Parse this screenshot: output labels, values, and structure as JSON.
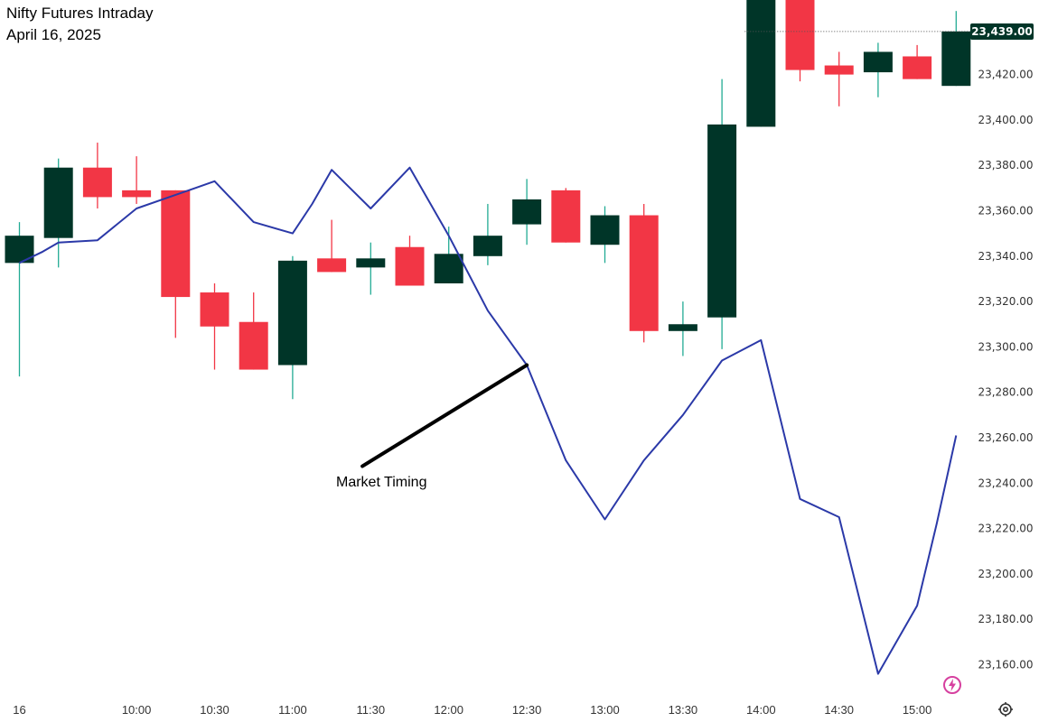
{
  "chart_data": {
    "type": "candlestick",
    "title": "Nifty Futures Intraday",
    "subtitle": "April 16, 2025",
    "annotation": "Market Timing",
    "last_price_label": "23,439.00",
    "last_price": 23439,
    "ylim": [
      23144,
      23462
    ],
    "y_ticks": [
      23160,
      23180,
      23200,
      23220,
      23240,
      23260,
      23280,
      23300,
      23320,
      23340,
      23360,
      23380,
      23400,
      23420
    ],
    "y_tick_labels": [
      "23,160.00",
      "23,180.00",
      "23,200.00",
      "23,220.00",
      "23,240.00",
      "23,260.00",
      "23,280.00",
      "23,300.00",
      "23,320.00",
      "23,340.00",
      "23,360.00",
      "23,380.00",
      "23,400.00",
      "23,420.00"
    ],
    "x_tick_labels": [
      {
        "label": "16",
        "index": 0
      },
      {
        "label": "10:00",
        "index": 3
      },
      {
        "label": "10:30",
        "index": 5
      },
      {
        "label": "11:00",
        "index": 7
      },
      {
        "label": "11:30",
        "index": 9
      },
      {
        "label": "12:00",
        "index": 11
      },
      {
        "label": "12:30",
        "index": 13
      },
      {
        "label": "13:00",
        "index": 15
      },
      {
        "label": "13:30",
        "index": 17
      },
      {
        "label": "14:00",
        "index": 19
      },
      {
        "label": "14:30",
        "index": 21
      },
      {
        "label": "15:00",
        "index": 23
      }
    ],
    "candles": [
      {
        "o": 23337,
        "h": 23355,
        "l": 23287,
        "c": 23349
      },
      {
        "o": 23348,
        "h": 23383,
        "l": 23335,
        "c": 23379
      },
      {
        "o": 23379,
        "h": 23390,
        "l": 23361,
        "c": 23366
      },
      {
        "o": 23369,
        "h": 23384,
        "l": 23363,
        "c": 23366
      },
      {
        "o": 23369,
        "h": 23369,
        "l": 23304,
        "c": 23322
      },
      {
        "o": 23324,
        "h": 23328,
        "l": 23290,
        "c": 23309
      },
      {
        "o": 23311,
        "h": 23324,
        "l": 23290,
        "c": 23290
      },
      {
        "o": 23292,
        "h": 23340,
        "l": 23277,
        "c": 23338
      },
      {
        "o": 23339,
        "h": 23356,
        "l": 23333,
        "c": 23333
      },
      {
        "o": 23335,
        "h": 23346,
        "l": 23323,
        "c": 23339
      },
      {
        "o": 23344,
        "h": 23349,
        "l": 23327,
        "c": 23327
      },
      {
        "o": 23328,
        "h": 23353,
        "l": 23328,
        "c": 23341
      },
      {
        "o": 23340,
        "h": 23363,
        "l": 23336,
        "c": 23349
      },
      {
        "o": 23354,
        "h": 23374,
        "l": 23345,
        "c": 23365
      },
      {
        "o": 23369,
        "h": 23370,
        "l": 23346,
        "c": 23346
      },
      {
        "o": 23345,
        "h": 23362,
        "l": 23337,
        "c": 23358
      },
      {
        "o": 23358,
        "h": 23363,
        "l": 23302,
        "c": 23307
      },
      {
        "o": 23307,
        "h": 23320,
        "l": 23296,
        "c": 23310
      },
      {
        "o": 23313,
        "h": 23418,
        "l": 23299,
        "c": 23398
      },
      {
        "o": 23397,
        "h": 23462,
        "l": 23397,
        "c": 23459
      },
      {
        "o": 23462,
        "h": 23462,
        "l": 23417,
        "c": 23422
      },
      {
        "o": 23424,
        "h": 23430,
        "l": 23406,
        "c": 23420
      },
      {
        "o": 23421,
        "h": 23434,
        "l": 23410,
        "c": 23430
      },
      {
        "o": 23428,
        "h": 23433,
        "l": 23418,
        "c": 23418
      },
      {
        "o": 23415,
        "h": 23448,
        "l": 23415,
        "c": 23439
      }
    ],
    "overlay_line": [
      [
        0,
        23337
      ],
      [
        0.6,
        23342
      ],
      [
        1,
        23346
      ],
      [
        2,
        23347
      ],
      [
        3,
        23361
      ],
      [
        4,
        23367
      ],
      [
        4.5,
        23370
      ],
      [
        5,
        23373
      ],
      [
        6,
        23355
      ],
      [
        7,
        23350
      ],
      [
        7.5,
        23363
      ],
      [
        8,
        23378
      ],
      [
        9,
        23361
      ],
      [
        10,
        23379
      ],
      [
        11,
        23349
      ],
      [
        12,
        23316
      ],
      [
        13,
        23292
      ],
      [
        14,
        23250
      ],
      [
        15,
        23224
      ],
      [
        16,
        23250
      ],
      [
        17,
        23270
      ],
      [
        18,
        23294
      ],
      [
        19,
        23303
      ],
      [
        20,
        23233
      ],
      [
        21,
        23225
      ],
      [
        22,
        23156
      ],
      [
        23,
        23186
      ],
      [
        23.5,
        23222
      ],
      [
        24,
        23261
      ]
    ],
    "colors": {
      "up": "#003528",
      "down": "#f23645",
      "line": "#2b39a8",
      "annotation_line": "#000000",
      "price_badge": "#003528",
      "axis_text": "#333333",
      "lightning": "#d6409f"
    },
    "icons": [
      "lightning-icon",
      "settings-icon"
    ]
  }
}
